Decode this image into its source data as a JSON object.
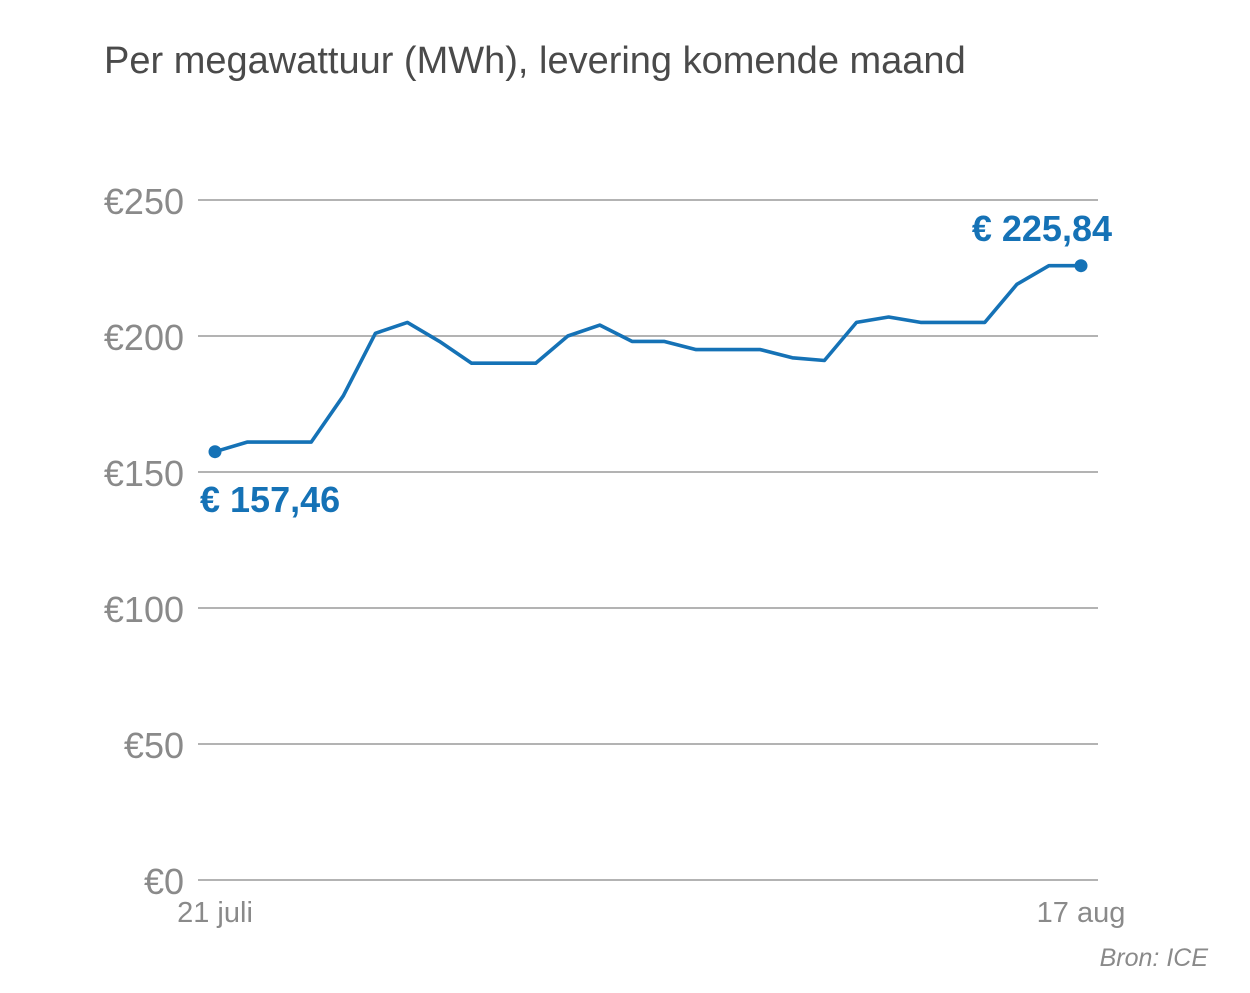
{
  "chart_data": {
    "type": "line",
    "title": "Per megawattuur (MWh), levering komende maand",
    "xlabel": "",
    "ylabel": "",
    "ylim": [
      0,
      250
    ],
    "yticks": [
      0,
      50,
      100,
      150,
      200,
      250
    ],
    "ytick_labels": [
      "€0",
      "€50",
      "€100",
      "€150",
      "€200",
      "€250"
    ],
    "x_range": [
      "21 juli",
      "17 aug"
    ],
    "xtick_labels": [
      "21 juli",
      "17 aug"
    ],
    "grid": true,
    "series": [
      {
        "values": [
          157.46,
          161,
          161,
          161,
          178,
          201,
          205,
          198,
          190,
          190,
          190,
          200,
          204,
          198,
          198,
          195,
          195,
          195,
          192,
          191,
          205,
          207,
          205,
          205,
          205,
          219,
          225.84,
          225.84
        ]
      }
    ],
    "annotations": [
      {
        "text": "€ 157,46",
        "point": "first"
      },
      {
        "text": "€ 225,84",
        "point": "last"
      }
    ],
    "colors": {
      "series": "#1572b6",
      "grid": "#9a9a9a",
      "axis_text": "#8a8a8a",
      "title": "#4a4a4a"
    },
    "source": "Bron: ICE"
  }
}
